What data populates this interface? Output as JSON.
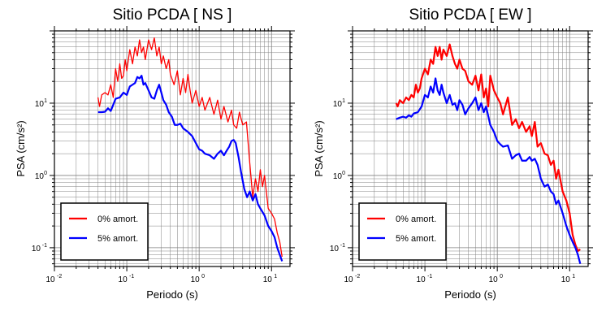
{
  "chart_data": [
    {
      "type": "line",
      "title": "Sitio PCDA [ NS ]",
      "xlabel": "Periodo (s)",
      "ylabel": "PSA (cm/s²)",
      "xscale": "log",
      "yscale": "log",
      "xlim": [
        0.01,
        18
      ],
      "ylim": [
        0.055,
        100
      ],
      "xticks": [
        {
          "base": "10",
          "exp": "-2"
        },
        {
          "base": "10",
          "exp": "-1"
        },
        {
          "base": "10",
          "exp": "0"
        },
        {
          "base": "10",
          "exp": "1"
        }
      ],
      "yticks": [
        {
          "base": "10",
          "exp": "-1"
        },
        {
          "base": "10",
          "exp": "0"
        },
        {
          "base": "10",
          "exp": "1"
        }
      ],
      "grid": true,
      "legend_position": "bottom-left",
      "series": [
        {
          "name": "0% amort.",
          "color": "#ff0000",
          "stroke": 1.3,
          "x": [
            0.04,
            0.042,
            0.045,
            0.05,
            0.055,
            0.06,
            0.065,
            0.07,
            0.075,
            0.08,
            0.085,
            0.09,
            0.095,
            0.1,
            0.11,
            0.12,
            0.13,
            0.14,
            0.15,
            0.16,
            0.17,
            0.18,
            0.2,
            0.22,
            0.24,
            0.26,
            0.28,
            0.3,
            0.32,
            0.35,
            0.38,
            0.4,
            0.45,
            0.5,
            0.55,
            0.6,
            0.65,
            0.7,
            0.75,
            0.8,
            0.9,
            1.0,
            1.1,
            1.2,
            1.4,
            1.6,
            1.8,
            2.0,
            2.2,
            2.5,
            2.8,
            3.0,
            3.3,
            3.6,
            4.0,
            4.5,
            5.0,
            5.5,
            6.0,
            6.5,
            7.0,
            7.5,
            8.0,
            9.0,
            10.0,
            11.0,
            12.0,
            13.0,
            14.0
          ],
          "y": [
            12,
            9,
            13,
            14,
            13,
            18,
            12,
            30,
            20,
            35,
            22,
            24,
            40,
            28,
            55,
            35,
            60,
            45,
            75,
            50,
            60,
            40,
            75,
            55,
            80,
            45,
            60,
            35,
            45,
            30,
            40,
            25,
            18,
            28,
            13,
            22,
            14,
            25,
            15,
            10,
            15,
            9,
            12,
            8,
            12,
            7,
            11,
            6,
            9,
            5.5,
            8,
            5,
            4.5,
            7.5,
            5,
            5.5,
            1.5,
            0.5,
            0.9,
            0.6,
            1.2,
            0.7,
            1.0,
            0.35,
            0.3,
            0.25,
            0.16,
            0.12,
            0.075
          ]
        },
        {
          "name": "5% amort.",
          "color": "#0000ff",
          "stroke": 2.2,
          "x": [
            0.04,
            0.045,
            0.05,
            0.055,
            0.06,
            0.065,
            0.07,
            0.08,
            0.09,
            0.1,
            0.11,
            0.12,
            0.13,
            0.14,
            0.15,
            0.16,
            0.17,
            0.18,
            0.2,
            0.22,
            0.24,
            0.26,
            0.28,
            0.3,
            0.32,
            0.35,
            0.38,
            0.42,
            0.46,
            0.5,
            0.55,
            0.6,
            0.7,
            0.8,
            0.9,
            1.0,
            1.1,
            1.2,
            1.4,
            1.6,
            1.8,
            2.0,
            2.2,
            2.4,
            2.6,
            2.8,
            3.0,
            3.2,
            3.5,
            3.8,
            4.2,
            4.6,
            5.0,
            5.5,
            6.0,
            6.5,
            7.0,
            8.0,
            9.0,
            10.0,
            11.0,
            12.0,
            13.0,
            14.0
          ],
          "y": [
            7.5,
            7.5,
            7.6,
            8.5,
            7.8,
            9.5,
            11.5,
            12,
            14,
            13,
            17,
            18,
            19,
            23,
            22,
            24,
            18,
            19,
            15,
            12,
            11.5,
            15,
            18,
            14,
            11,
            9.5,
            7.5,
            6.5,
            5,
            5,
            5.2,
            4.5,
            4,
            3.5,
            2.8,
            2.3,
            2.2,
            2.0,
            1.9,
            1.7,
            2.0,
            2.2,
            1.9,
            2.2,
            2.5,
            3.0,
            3.1,
            2.8,
            1.8,
            1.1,
            0.65,
            0.5,
            0.6,
            0.45,
            0.55,
            0.4,
            0.35,
            0.28,
            0.2,
            0.17,
            0.14,
            0.1,
            0.08,
            0.065
          ]
        }
      ]
    },
    {
      "type": "line",
      "title": "Sitio PCDA [ EW ]",
      "xlabel": "Periodo (s)",
      "ylabel": "PSA (cm/s²)",
      "xscale": "log",
      "yscale": "log",
      "xlim": [
        0.01,
        18
      ],
      "ylim": [
        0.055,
        100
      ],
      "xticks": [
        {
          "base": "10",
          "exp": "-2"
        },
        {
          "base": "10",
          "exp": "-1"
        },
        {
          "base": "10",
          "exp": "0"
        },
        {
          "base": "10",
          "exp": "1"
        }
      ],
      "yticks": [
        {
          "base": "10",
          "exp": "-1"
        },
        {
          "base": "10",
          "exp": "0"
        },
        {
          "base": "10",
          "exp": "1"
        }
      ],
      "grid": true,
      "legend_position": "bottom-left",
      "series": [
        {
          "name": "0% amort.",
          "color": "#ff0000",
          "stroke": 2.2,
          "x": [
            0.04,
            0.042,
            0.045,
            0.05,
            0.055,
            0.06,
            0.065,
            0.07,
            0.075,
            0.08,
            0.085,
            0.09,
            0.1,
            0.11,
            0.12,
            0.13,
            0.14,
            0.15,
            0.16,
            0.17,
            0.18,
            0.2,
            0.22,
            0.24,
            0.26,
            0.28,
            0.3,
            0.33,
            0.36,
            0.4,
            0.45,
            0.5,
            0.55,
            0.6,
            0.65,
            0.7,
            0.75,
            0.8,
            0.9,
            1.0,
            1.1,
            1.2,
            1.4,
            1.6,
            1.8,
            2.0,
            2.2,
            2.5,
            2.8,
            3.0,
            3.3,
            3.6,
            4.0,
            4.5,
            5.0,
            5.5,
            6.0,
            6.5,
            7.0,
            8.0,
            9.0,
            10.0,
            11.0,
            12.0,
            13.0,
            14.0
          ],
          "y": [
            10,
            9,
            11,
            10,
            12,
            11,
            13,
            12,
            18,
            14,
            16,
            22,
            30,
            25,
            40,
            35,
            60,
            45,
            60,
            40,
            55,
            45,
            65,
            45,
            35,
            30,
            40,
            30,
            28,
            20,
            18,
            24,
            15,
            25,
            12,
            16,
            9,
            24,
            15,
            12,
            10,
            7,
            12,
            5,
            6,
            4.5,
            5.5,
            4,
            4.8,
            3.5,
            5.5,
            2.5,
            2.8,
            2.0,
            1.9,
            1.4,
            1.6,
            0.9,
            1.2,
            0.6,
            0.45,
            0.3,
            0.15,
            0.11,
            0.09,
            0.095
          ]
        },
        {
          "name": "5% amort.",
          "color": "#0000ff",
          "stroke": 2.2,
          "x": [
            0.04,
            0.045,
            0.05,
            0.055,
            0.06,
            0.065,
            0.07,
            0.08,
            0.09,
            0.1,
            0.11,
            0.12,
            0.13,
            0.14,
            0.15,
            0.16,
            0.17,
            0.18,
            0.2,
            0.22,
            0.24,
            0.26,
            0.28,
            0.3,
            0.33,
            0.36,
            0.4,
            0.45,
            0.5,
            0.55,
            0.6,
            0.65,
            0.7,
            0.8,
            0.9,
            1.0,
            1.1,
            1.2,
            1.4,
            1.6,
            1.8,
            2.0,
            2.2,
            2.5,
            2.8,
            3.0,
            3.3,
            3.6,
            4.0,
            4.5,
            5.0,
            5.5,
            6.0,
            6.5,
            7.0,
            8.0,
            9.0,
            10.0,
            11.0,
            12.0,
            13.0,
            14.0
          ],
          "y": [
            6,
            6.3,
            6.5,
            6.3,
            6.8,
            6.5,
            7.2,
            7.5,
            9,
            13,
            12,
            17,
            14,
            22,
            15,
            13,
            18,
            14,
            10,
            13,
            9.5,
            10,
            8,
            11,
            9.5,
            7,
            8.5,
            10,
            12,
            8,
            10,
            7.5,
            9,
            5,
            4,
            3,
            2.7,
            2.5,
            2.6,
            1.7,
            1.9,
            2.0,
            1.6,
            1.6,
            1.8,
            1.6,
            1.7,
            1.4,
            0.9,
            0.7,
            0.75,
            0.6,
            0.55,
            0.4,
            0.45,
            0.3,
            0.2,
            0.15,
            0.12,
            0.1,
            0.08,
            0.06
          ]
        }
      ]
    }
  ]
}
